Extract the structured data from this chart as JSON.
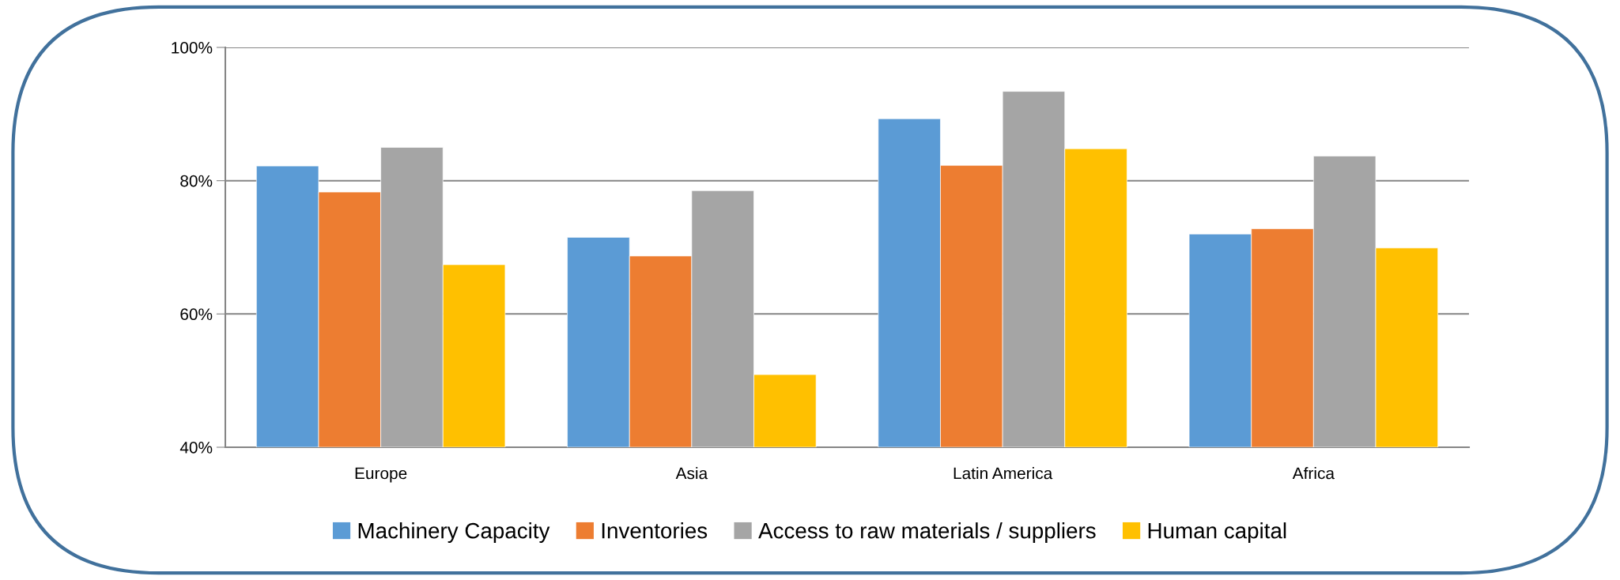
{
  "chart_data": {
    "type": "bar",
    "categories": [
      "Europe",
      "Asia",
      "Latin America",
      "Africa"
    ],
    "series": [
      {
        "name": "Machinery Capacity",
        "color": "#5b9bd5",
        "values": [
          82.2,
          71.5,
          89.3,
          72.0
        ]
      },
      {
        "name": "Inventories",
        "color": "#ed7d31",
        "values": [
          78.3,
          68.7,
          82.3,
          72.8
        ]
      },
      {
        "name": "Access to raw materials / suppliers",
        "color": "#a5a5a5",
        "values": [
          85.0,
          78.5,
          93.4,
          83.7
        ]
      },
      {
        "name": "Human capital",
        "color": "#ffc000",
        "values": [
          67.4,
          50.9,
          84.8,
          69.9
        ]
      }
    ],
    "ylim": [
      40,
      100
    ],
    "yticks": [
      {
        "value": 40,
        "label": "40%"
      },
      {
        "value": 60,
        "label": "60%"
      },
      {
        "value": 80,
        "label": "80%"
      },
      {
        "value": 100,
        "label": "100%"
      }
    ],
    "grid": "y",
    "legend": "bottom"
  }
}
